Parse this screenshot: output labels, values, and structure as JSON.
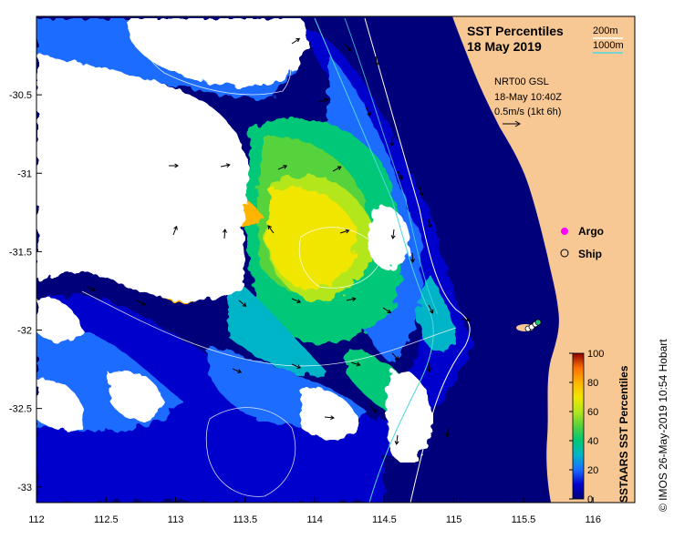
{
  "title": {
    "line1": "SST Percentiles",
    "line2": "18 May 2019"
  },
  "isobath_legend": [
    {
      "label": "200m",
      "color": "#ffffff"
    },
    {
      "label": "1000m",
      "color": "#4fd6e0"
    }
  ],
  "source_info": {
    "product": "NRT00 GSL",
    "time": "18-May 10:40Z",
    "speed_scale": "0.5m/s (1kt 6h)"
  },
  "markers": [
    {
      "label": "Argo",
      "symbol": "magenta-circle-icon",
      "color": "#ff00ff"
    },
    {
      "label": "Ship",
      "symbol": "open-circle-icon",
      "color": "#000000"
    }
  ],
  "axes": {
    "x_ticks": [
      "112",
      "112.5",
      "113",
      "113.5",
      "114",
      "114.5",
      "115",
      "115.5",
      "116"
    ],
    "y_ticks": [
      "-30.5",
      "-31",
      "-31.5",
      "-32",
      "-32.5",
      "-33"
    ],
    "x_range": [
      112,
      116.3
    ],
    "y_range": [
      -33.1,
      -30.0
    ]
  },
  "colorbar": {
    "title": "SSTAARS SST Percentiles",
    "ticks": [
      "0",
      "20",
      "40",
      "60",
      "80",
      "100"
    ],
    "range": [
      0,
      100
    ],
    "stops": [
      "#00007a",
      "#0000cc",
      "#1a6cff",
      "#00b4c8",
      "#00c878",
      "#56d23c",
      "#b4e61e",
      "#f0e600",
      "#ffb400",
      "#ff6e00",
      "#cc1400",
      "#8c0000"
    ]
  },
  "credit": "© IMOS 26-May-2019 10:54 Hobart",
  "colors": {
    "land": "#f7c894",
    "cloud": "#ffffff",
    "deep_ocean": "#00007a",
    "isobath_200m": "#ffffff",
    "isobath_1000m": "#4fd6e0"
  }
}
